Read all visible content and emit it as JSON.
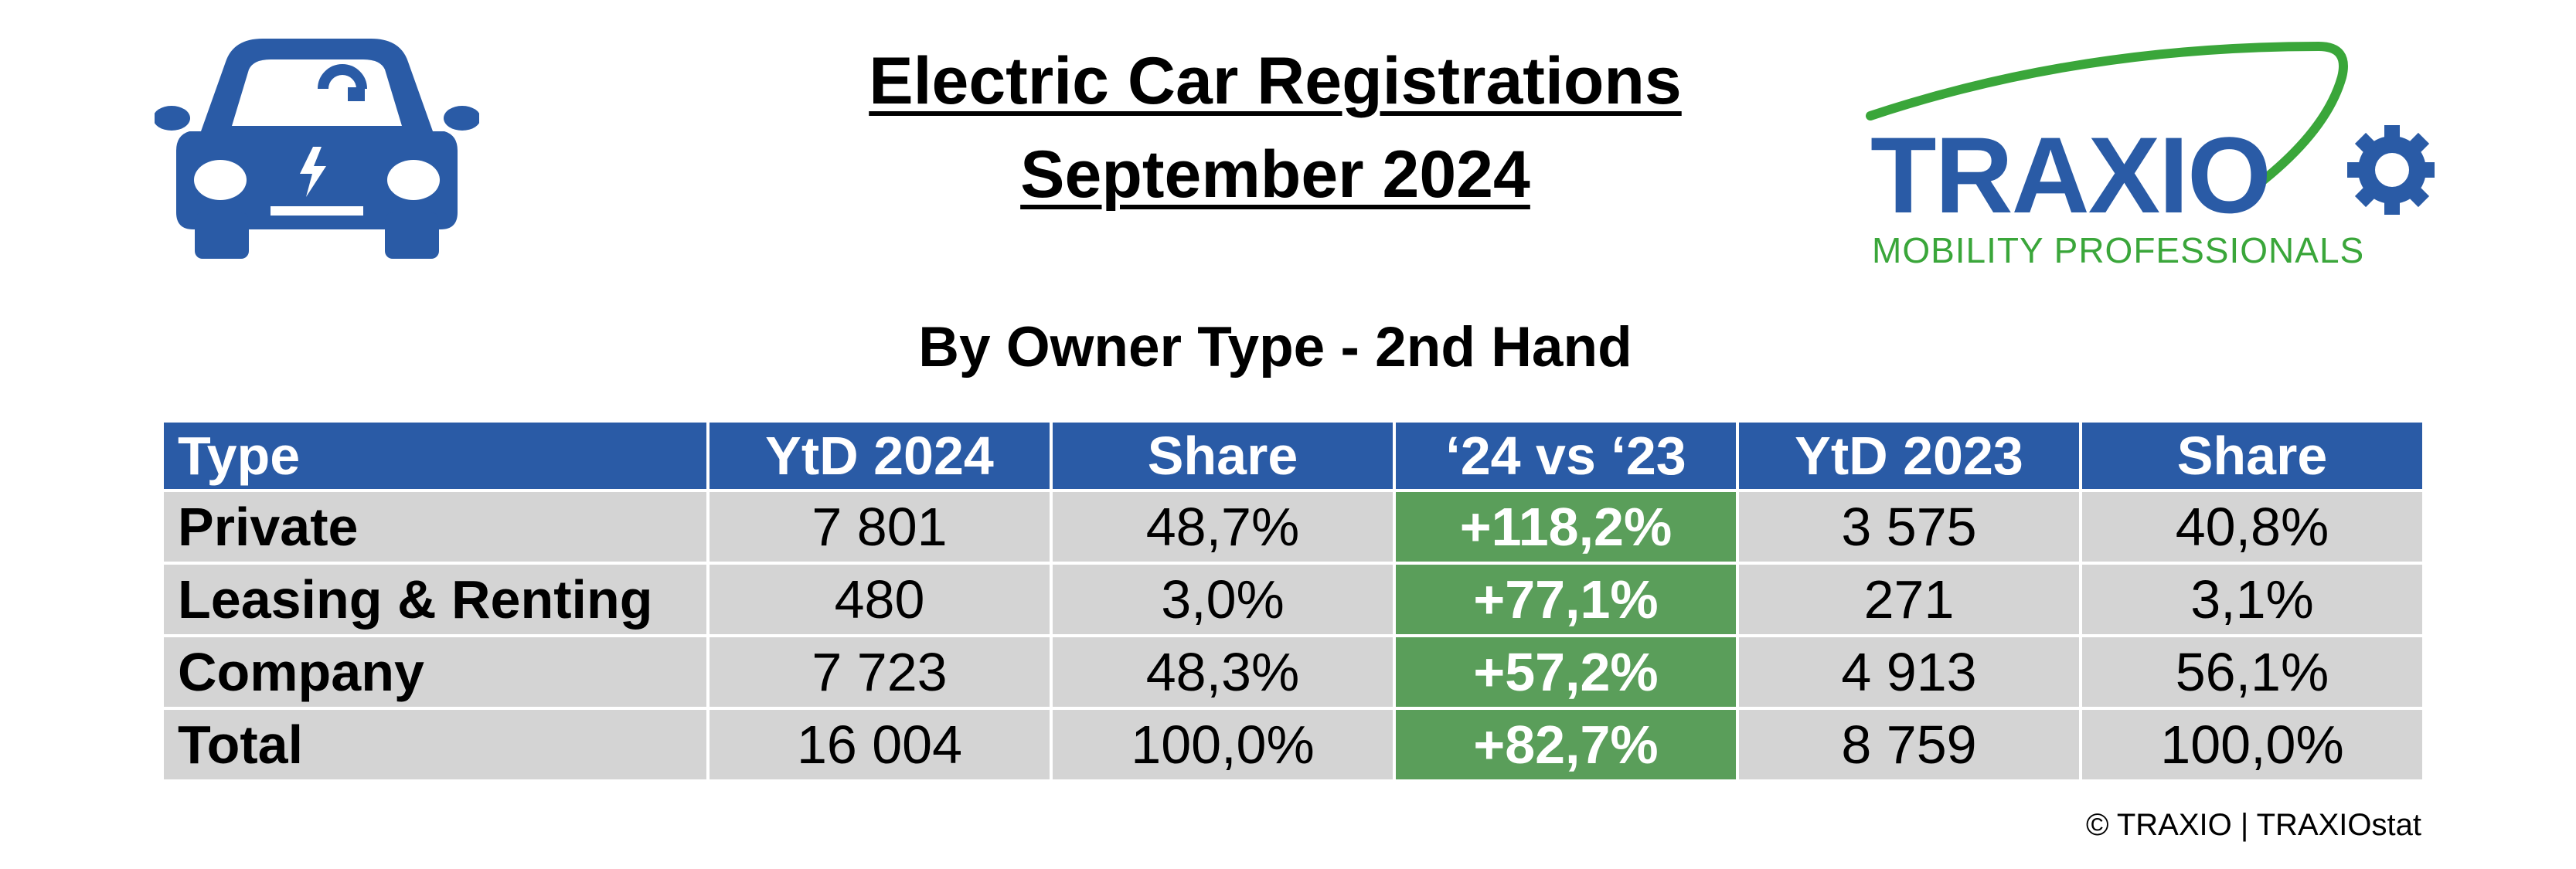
{
  "title_line1": "Electric Car Registrations",
  "title_line2": "September 2024",
  "subtitle": "By Owner Type - 2nd Hand",
  "logo": {
    "name": "TRAXIO",
    "tagline": "MOBILITY PROFESSIONALS",
    "colors": {
      "brand_blue": "#2a5ba6",
      "brand_green": "#3aa63a"
    }
  },
  "icons": {
    "car": "electric-car-icon"
  },
  "colors": {
    "header_bg": "#2a5ba6",
    "cell_bg": "#d4d4d4",
    "growth_bg": "#5a9e5a"
  },
  "chart_data": {
    "type": "table",
    "columns": [
      "Type",
      "YtD 2024",
      "Share",
      "‘24 vs ‘23",
      "YtD 2023",
      "Share"
    ],
    "rows": [
      [
        "Private",
        "7 801",
        "48,7%",
        "+118,2%",
        "3 575",
        "40,8%"
      ],
      [
        "Leasing & Renting",
        "480",
        "3,0%",
        "+77,1%",
        "271",
        "3,1%"
      ],
      [
        "Company",
        "7 723",
        "48,3%",
        "+57,2%",
        "4 913",
        "56,1%"
      ],
      [
        "Total",
        "16 004",
        "100,0%",
        "+82,7%",
        "8 759",
        "100,0%"
      ]
    ]
  },
  "footer": "© TRAXIO | TRAXIOstat"
}
